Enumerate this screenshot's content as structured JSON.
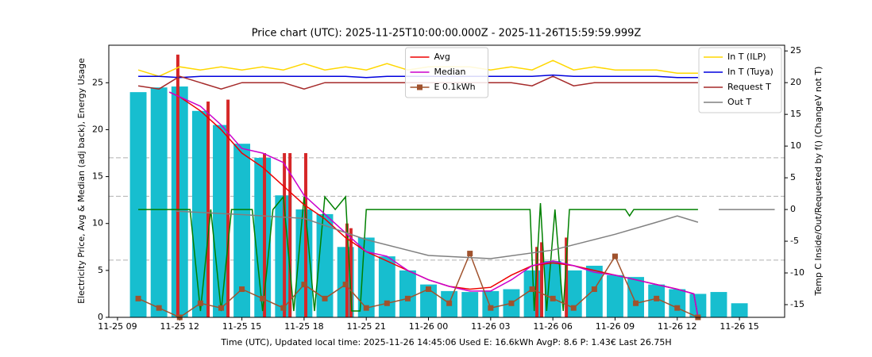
{
  "chart_data": {
    "type": "combo",
    "title": "Price chart (UTC): 2025-11-25T10:00:00.000Z - 2025-11-26T15:59:59.999Z",
    "xlabel": "Time (UTC), Updated local time: 2025-11-26 14:45:06 Used E: 16.6kWh AvgP: 8.6 P: 1.43€ Last 26.75H",
    "ylabel": "Electricity Price, Avg & Median (adj back), Energy Usage",
    "ylabel_color": "#cc00cc",
    "y2label": "Temp C Inside/Out/Requested by f() (ChangeV not T)",
    "y2label_color": "#0000cc",
    "xlim": [
      8.58,
      41.18
    ],
    "xticks": [
      {
        "value": 9,
        "label": "11-25 09"
      },
      {
        "value": 12,
        "label": "11-25 12"
      },
      {
        "value": 15,
        "label": "11-25 15"
      },
      {
        "value": 18,
        "label": "11-25 18"
      },
      {
        "value": 21,
        "label": "11-25 21"
      },
      {
        "value": 24,
        "label": "11-26 00"
      },
      {
        "value": 27,
        "label": "11-26 03"
      },
      {
        "value": 30,
        "label": "11-26 06"
      },
      {
        "value": 33,
        "label": "11-26 09"
      },
      {
        "value": 36,
        "label": "11-26 12"
      },
      {
        "value": 39,
        "label": "11-26 15"
      }
    ],
    "ylim": [
      0,
      29
    ],
    "yticks": [
      0,
      5,
      10,
      15,
      20,
      25
    ],
    "y2lim": [
      -17,
      25.9
    ],
    "y2ticks": [
      -15,
      -10,
      -5,
      0,
      5,
      10,
      15,
      20,
      25
    ],
    "hlines": [
      17,
      12.9,
      6.1
    ],
    "hline_color": "#b0b0b0",
    "series": [
      {
        "kind": "bar",
        "axis": "y",
        "color": "#17becf",
        "x": [
          10,
          11,
          12,
          13,
          14,
          15,
          16,
          17,
          18,
          19,
          20,
          21,
          22,
          23,
          24,
          25,
          26,
          27,
          28,
          29,
          30,
          31,
          32,
          33,
          34,
          35,
          36,
          37,
          38,
          39
        ],
        "values": [
          24,
          24.5,
          24.6,
          22,
          20.5,
          18.5,
          17,
          13,
          11.5,
          11,
          7.5,
          8.5,
          6.5,
          5,
          3.5,
          2.8,
          2.7,
          2.8,
          3,
          5,
          6,
          5,
          5.5,
          4.5,
          4.3,
          3.5,
          3,
          2.5,
          2.7,
          1.5
        ]
      },
      {
        "kind": "bar",
        "axis": "y",
        "color": "#d62728",
        "x": [
          11.91,
          13.37,
          14.33,
          16.09,
          17.05,
          17.32,
          18.08,
          20.07,
          20.26,
          29.23,
          29.46,
          30.65
        ],
        "values": [
          28,
          23,
          23.2,
          17.5,
          17.5,
          17.5,
          17.5,
          10,
          9.5,
          7.5,
          8,
          8.5
        ]
      },
      {
        "kind": "line",
        "axis": "y2",
        "color": "#008000",
        "x": [
          10,
          12.5,
          13,
          13.5,
          14,
          14.5,
          15.5,
          16,
          16.5,
          17,
          17.5,
          18,
          18.5,
          19,
          19.5,
          20,
          20.3,
          20.7,
          21,
          28.9,
          29.1,
          29.4,
          29.7,
          30.1,
          30.5,
          30.8,
          33.5,
          33.7,
          33.9,
          37
        ],
        "values": [
          0,
          0,
          -16,
          0,
          -16,
          0,
          0,
          -16,
          0,
          2,
          -16,
          2,
          -16,
          2,
          0,
          2,
          -16,
          -16,
          0,
          0,
          -16,
          1,
          -16,
          0,
          -16,
          0,
          0,
          -1,
          0,
          0
        ]
      },
      {
        "kind": "line",
        "axis": "y",
        "color": "#ee0000",
        "name": "Avg",
        "legend": "upper center",
        "x": [
          11.5,
          12,
          13,
          14,
          15,
          16,
          17,
          18,
          19,
          20,
          21,
          22,
          23,
          24,
          25,
          26,
          27,
          28,
          29,
          30,
          31,
          32,
          33,
          34,
          35,
          36,
          36.8,
          37
        ],
        "values": [
          24,
          23.5,
          22,
          20,
          17.5,
          16,
          14,
          12,
          10.5,
          8.5,
          7,
          6,
          5,
          4,
          3.3,
          3,
          3.2,
          4.5,
          5.5,
          5.8,
          5.5,
          5,
          4.5,
          4,
          3.5,
          3,
          2.5,
          0
        ]
      },
      {
        "kind": "line",
        "axis": "y",
        "color": "#cc00cc",
        "name": "Median",
        "legend": "upper center",
        "x": [
          11.5,
          12,
          13,
          14,
          15,
          16,
          17,
          18,
          19,
          20,
          21,
          22,
          23,
          24,
          25,
          26,
          27,
          28,
          29,
          30,
          31,
          32,
          33,
          34,
          35,
          36,
          36.8,
          37
        ],
        "values": [
          24,
          23.5,
          22.5,
          20.5,
          18,
          17.5,
          16.5,
          13,
          11,
          9,
          7,
          6.5,
          5,
          4,
          3.3,
          2.8,
          2.8,
          4,
          5.5,
          6,
          5.5,
          4.8,
          4.5,
          4,
          3.5,
          3,
          2.5,
          0
        ]
      },
      {
        "kind": "line-markers",
        "axis": "y",
        "color": "#a0522d",
        "name": "E 0.1kWh",
        "legend": "upper center",
        "x": [
          10,
          11,
          12,
          13,
          14,
          15,
          16,
          17,
          18,
          19,
          20,
          21,
          22,
          23,
          24,
          25,
          26,
          27,
          28,
          29,
          30,
          31,
          32,
          33,
          34,
          35,
          36,
          37
        ],
        "values": [
          2,
          1,
          0,
          1.5,
          1,
          3,
          2,
          1,
          3.5,
          2,
          3.5,
          1,
          1.5,
          2,
          3,
          1.5,
          6.8,
          1,
          1.5,
          3,
          2,
          1,
          3,
          6.5,
          1.5,
          2,
          1,
          0
        ]
      },
      {
        "kind": "line",
        "axis": "y2",
        "color": "#ffd700",
        "name": "In T (ILP)",
        "legend": "upper right",
        "x": [
          10,
          11,
          12,
          13,
          14,
          15,
          16,
          17,
          18,
          19,
          20,
          21,
          22,
          23,
          24,
          25,
          26,
          27,
          28,
          29,
          30,
          31,
          32,
          33,
          34,
          35,
          36,
          37
        ],
        "values": [
          22,
          21,
          22.5,
          22,
          22.5,
          22,
          22.5,
          22,
          23,
          22,
          22.5,
          22,
          23,
          22,
          22.5,
          22.5,
          22.5,
          22,
          22.5,
          22,
          23.5,
          22,
          22.5,
          22,
          22,
          22,
          21.5,
          21.5
        ]
      },
      {
        "kind": "line",
        "axis": "y2",
        "color": "#0000dd",
        "name": "In T (Tuya)",
        "legend": "upper right",
        "x": [
          10,
          11,
          12,
          13,
          14,
          15,
          16,
          17,
          18,
          19,
          20,
          21,
          22,
          23,
          24,
          25,
          26,
          27,
          28,
          29,
          30,
          31,
          32,
          33,
          34,
          35,
          36,
          37
        ],
        "values": [
          21,
          21,
          20.8,
          21,
          21,
          21,
          21,
          21,
          21,
          21,
          21,
          20.8,
          21,
          21,
          21,
          21,
          21,
          21,
          21,
          21,
          21.2,
          21,
          21,
          21,
          21,
          21,
          20.8,
          20.8
        ]
      },
      {
        "kind": "line",
        "axis": "y2",
        "color": "#a52a2a",
        "name": "Request T",
        "legend": "upper right",
        "x": [
          10,
          11,
          12,
          13,
          14,
          15,
          16,
          17,
          18,
          19,
          20,
          21,
          22,
          23,
          24,
          25,
          26,
          27,
          28,
          29,
          30,
          31,
          32,
          33,
          34,
          35,
          36,
          37
        ],
        "values": [
          19.5,
          19,
          21,
          20,
          19,
          20,
          20,
          20,
          19,
          20,
          20,
          20,
          20,
          20,
          20,
          20,
          20,
          20,
          20,
          19.5,
          21,
          19.5,
          20,
          20,
          20,
          20,
          20,
          20
        ]
      },
      {
        "kind": "line",
        "axis": "y2",
        "color": "#808080",
        "name": "Out T",
        "legend": "upper right",
        "x": [
          11.8,
          15,
          18,
          21,
          24,
          27,
          30,
          33,
          35,
          36,
          37,
          37.1,
          38,
          40.7
        ],
        "values": [
          -0.25,
          -0.8,
          -1.4,
          -4.75,
          -7.25,
          -7.75,
          -6.4,
          -3.9,
          -2,
          -1,
          -2,
          null,
          0,
          0
        ]
      }
    ]
  }
}
